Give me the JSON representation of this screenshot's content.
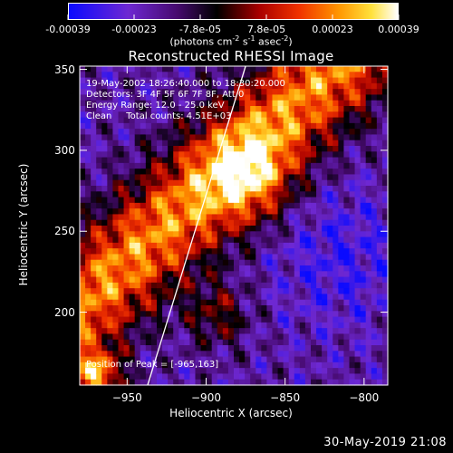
{
  "colorbar": {
    "tick_labels": [
      "-0.00039",
      "-0.00023",
      "-7.8e-05",
      "7.8e-05",
      "0.00023",
      "0.00039"
    ],
    "units": "(photons cm",
    "units_exp1": "-2",
    "units_mid": " s",
    "units_exp2": "-1",
    "units_end": " asec",
    "units_exp3": "-2",
    "units_close": ")"
  },
  "info": {
    "time_range": "19-May-2002 18:26:40.000 to 18:30:20.000",
    "detectors": "Detectors: 3F 4F 5F 6F 7F 8F, Att 0",
    "energy": "Energy Range: 12.0 - 25.0 keV",
    "clean": "Clean     Total counts: 4.51E+03",
    "peak": "Position of Peak = [-965,163]"
  },
  "footer": {
    "date": "30-May-2019 21:08"
  },
  "chart_data": {
    "type": "heatmap",
    "title": "Reconstructed RHESSI Image",
    "xlabel": "Heliocentric X (arcsec)",
    "ylabel": "Heliocentric Y (arcsec)",
    "xlim": [
      -980,
      -785
    ],
    "ylim": [
      155,
      352
    ],
    "xticks": [
      -950,
      -900,
      -850,
      -800
    ],
    "yticks": [
      200,
      250,
      300,
      350
    ],
    "colormap": "red temperature (blue-purple-black-red-orange-yellow-white)",
    "color_range": [
      -0.00039,
      0.00039
    ],
    "peak_position": [
      -965,
      163
    ],
    "limb_line": [
      [
        -937,
        155
      ],
      [
        -875,
        352
      ]
    ]
  }
}
